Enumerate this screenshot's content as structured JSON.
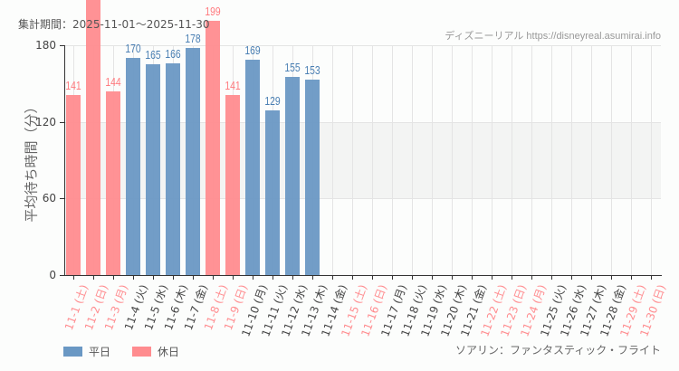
{
  "header": {
    "period": "集計期間：2025-11-01～2025-11-30",
    "credit": "ディズニーリアル https://disneyreal.asumirai.info"
  },
  "footer": {
    "attraction": "ソアリン：ファンタスティック・フライト"
  },
  "legend": [
    {
      "label": "平日",
      "color": "#6a98c4"
    },
    {
      "label": "休日",
      "color": "#ff8c8f"
    }
  ],
  "colors": {
    "weekday": "#6a98c4",
    "holiday": "#ff8c8f",
    "weekday_label": "#4a7fb3",
    "holiday_label": "#ff7b7f",
    "weekday_tick": "#444444",
    "holiday_tick": "#ff8c8f"
  },
  "chart_data": {
    "type": "bar",
    "title": "集計期間：2025-11-01～2025-11-30",
    "xlabel": "",
    "ylabel": "平均待ち時間（分）",
    "ylim": [
      0,
      180
    ],
    "yticks": [
      0,
      60,
      120,
      180
    ],
    "shaded_band": [
      60,
      120
    ],
    "grid": true,
    "legend_position": "bottom-left",
    "categories": [
      "11-1 (土)",
      "11-2 (日)",
      "11-3 (月)",
      "11-4 (火)",
      "11-5 (水)",
      "11-6 (木)",
      "11-7 (金)",
      "11-8 (土)",
      "11-9 (日)",
      "11-10 (月)",
      "11-11 (火)",
      "11-12 (水)",
      "11-13 (木)",
      "11-14 (金)",
      "11-15 (土)",
      "11-16 (日)",
      "11-17 (月)",
      "11-18 (火)",
      "11-19 (水)",
      "11-20 (木)",
      "11-21 (金)",
      "11-22 (土)",
      "11-23 (日)",
      "11-24 (月)",
      "11-25 (火)",
      "11-26 (水)",
      "11-27 (木)",
      "11-28 (金)",
      "11-29 (土)",
      "11-30 (日)"
    ],
    "day_type": [
      "holiday",
      "holiday",
      "holiday",
      "weekday",
      "weekday",
      "weekday",
      "weekday",
      "holiday",
      "holiday",
      "weekday",
      "weekday",
      "weekday",
      "weekday",
      "weekday",
      "holiday",
      "holiday",
      "weekday",
      "weekday",
      "weekday",
      "weekday",
      "weekday",
      "holiday",
      "holiday",
      "holiday",
      "weekday",
      "weekday",
      "weekday",
      "weekday",
      "holiday",
      "holiday"
    ],
    "values": [
      141,
      230,
      144,
      170,
      165,
      166,
      178,
      199,
      141,
      169,
      129,
      155,
      153,
      null,
      null,
      null,
      null,
      null,
      null,
      null,
      null,
      null,
      null,
      null,
      null,
      null,
      null,
      null,
      null,
      null
    ],
    "value_labels": [
      "141",
      "",
      "144",
      "170",
      "165",
      "166",
      "178",
      "199",
      "141",
      "169",
      "129",
      "155",
      "153",
      "",
      "",
      "",
      "",
      "",
      "",
      "",
      "",
      "",
      "",
      "",
      "",
      "",
      "",
      "",
      "",
      ""
    ],
    "series": [
      {
        "name": "平日",
        "values": [
          null,
          null,
          null,
          170,
          165,
          166,
          178,
          null,
          null,
          169,
          129,
          155,
          153,
          null,
          null,
          null,
          null,
          null,
          null,
          null,
          null,
          null,
          null,
          null,
          null,
          null,
          null,
          null,
          null,
          null
        ]
      },
      {
        "name": "休日",
        "values": [
          141,
          230,
          144,
          null,
          null,
          null,
          null,
          199,
          141,
          null,
          null,
          null,
          null,
          null,
          null,
          null,
          null,
          null,
          null,
          null,
          null,
          null,
          null,
          null,
          null,
          null,
          null,
          null,
          null,
          null
        ]
      }
    ],
    "notes": "11-2 bar exceeds the plot top (label clipped); value is an estimate"
  }
}
